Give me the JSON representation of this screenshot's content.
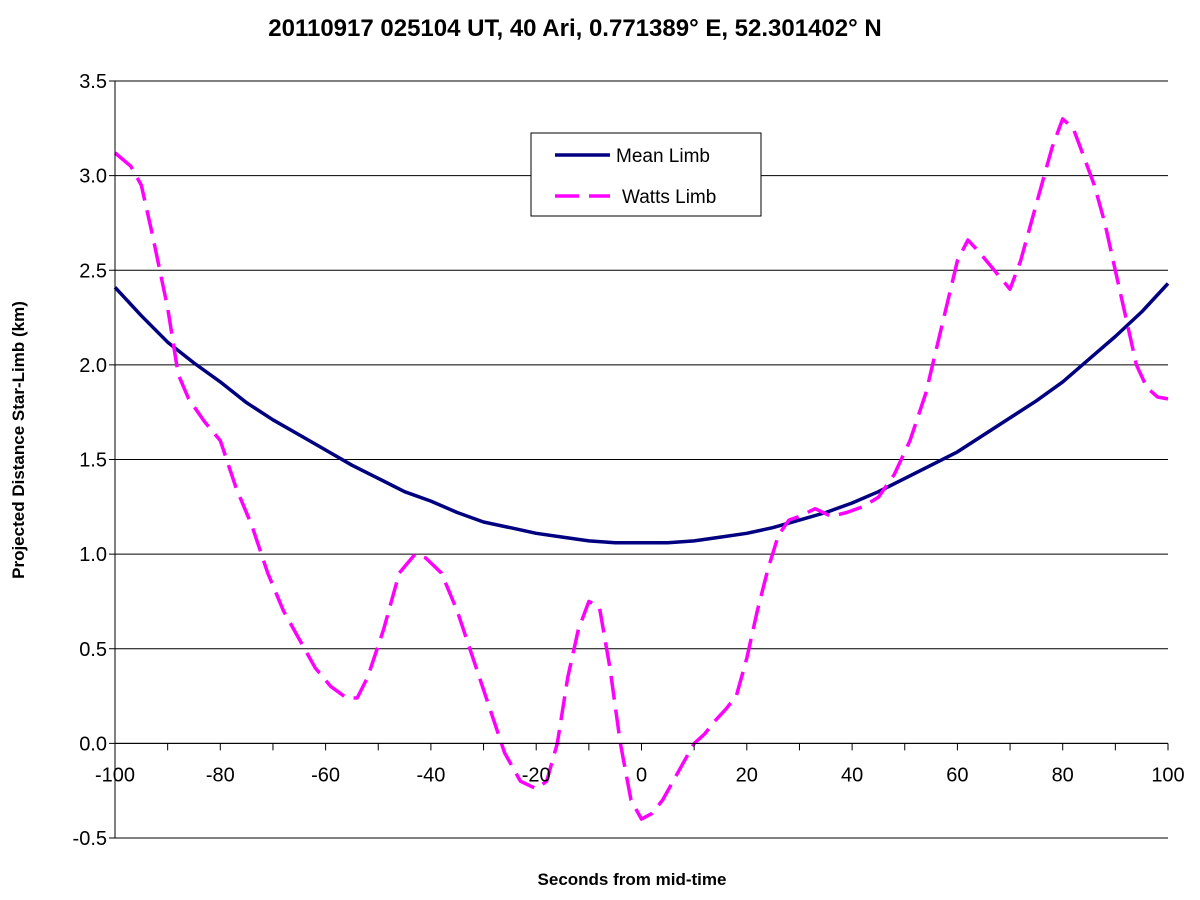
{
  "chart_data": {
    "type": "line",
    "title": "20110917 025104 UT, 40 Ari, 0.771389° E, 52.301402° N",
    "xlabel": "Seconds from mid-time",
    "ylabel": "Projected Distance Star-Limb (km)",
    "xlim": [
      -100,
      100
    ],
    "ylim": [
      -0.5,
      3.5
    ],
    "x_ticks": [
      -100,
      -80,
      -60,
      -40,
      -20,
      0,
      20,
      40,
      60,
      80,
      100
    ],
    "x_tick_labels": [
      "-100",
      "-80",
      "-60",
      "-40",
      "-20",
      "0",
      "20",
      "40",
      "60",
      "80",
      "100"
    ],
    "y_ticks": [
      -0.5,
      0.0,
      0.5,
      1.0,
      1.5,
      2.0,
      2.5,
      3.0,
      3.5
    ],
    "y_tick_labels": [
      "-0.5",
      "0.0",
      "0.5",
      "1.0",
      "1.5",
      "2.0",
      "2.5",
      "3.0",
      "3.5"
    ],
    "grid": "horizontal",
    "legend": "top-center",
    "series": [
      {
        "name": "Mean Limb",
        "color": "#000080",
        "style": "solid",
        "x": [
          -100,
          -95,
          -90,
          -85,
          -80,
          -75,
          -70,
          -65,
          -60,
          -55,
          -50,
          -45,
          -40,
          -35,
          -30,
          -25,
          -20,
          -15,
          -10,
          -5,
          0,
          5,
          10,
          15,
          20,
          25,
          30,
          35,
          40,
          45,
          50,
          55,
          60,
          65,
          70,
          75,
          80,
          85,
          90,
          95,
          100
        ],
        "y": [
          2.41,
          2.26,
          2.12,
          2.01,
          1.91,
          1.8,
          1.71,
          1.63,
          1.55,
          1.47,
          1.4,
          1.33,
          1.28,
          1.22,
          1.17,
          1.14,
          1.11,
          1.09,
          1.07,
          1.06,
          1.06,
          1.06,
          1.07,
          1.09,
          1.11,
          1.14,
          1.18,
          1.22,
          1.27,
          1.33,
          1.4,
          1.47,
          1.54,
          1.63,
          1.72,
          1.81,
          1.91,
          2.03,
          2.15,
          2.28,
          2.43
        ]
      },
      {
        "name": "Watts Limb",
        "color": "#ff00ff",
        "style": "dashed",
        "x": [
          -100,
          -97,
          -95,
          -93,
          -90,
          -88,
          -86,
          -83,
          -80,
          -77,
          -74,
          -71,
          -68,
          -65,
          -62,
          -59,
          -56,
          -54,
          -52,
          -49,
          -46,
          -43,
          -41,
          -38,
          -35,
          -32,
          -29,
          -26,
          -23,
          -20,
          -18,
          -16,
          -14,
          -12,
          -10,
          -8,
          -6,
          -4,
          -2,
          0,
          2,
          4,
          6,
          8,
          10,
          12,
          14,
          16,
          18,
          20,
          22,
          24,
          26,
          28,
          30,
          33,
          36,
          39,
          42,
          45,
          48,
          51,
          54,
          57,
          60,
          62,
          64,
          67,
          70,
          72,
          74,
          76,
          78,
          80,
          82,
          84,
          86,
          88,
          90,
          92,
          94,
          96,
          98,
          100
        ],
        "y": [
          3.12,
          3.05,
          2.95,
          2.7,
          2.3,
          1.95,
          1.82,
          1.7,
          1.6,
          1.35,
          1.15,
          0.9,
          0.7,
          0.55,
          0.4,
          0.3,
          0.24,
          0.24,
          0.35,
          0.6,
          0.9,
          1.0,
          0.98,
          0.9,
          0.7,
          0.45,
          0.2,
          -0.05,
          -0.2,
          -0.24,
          -0.2,
          0.0,
          0.35,
          0.6,
          0.75,
          0.72,
          0.4,
          0.0,
          -0.3,
          -0.4,
          -0.37,
          -0.3,
          -0.2,
          -0.1,
          0.0,
          0.05,
          0.12,
          0.18,
          0.25,
          0.45,
          0.7,
          0.92,
          1.1,
          1.18,
          1.2,
          1.24,
          1.2,
          1.22,
          1.25,
          1.3,
          1.42,
          1.6,
          1.85,
          2.2,
          2.55,
          2.66,
          2.6,
          2.5,
          2.4,
          2.55,
          2.75,
          2.95,
          3.15,
          3.3,
          3.25,
          3.1,
          2.95,
          2.75,
          2.5,
          2.25,
          2.0,
          1.88,
          1.83,
          1.82
        ]
      }
    ]
  }
}
